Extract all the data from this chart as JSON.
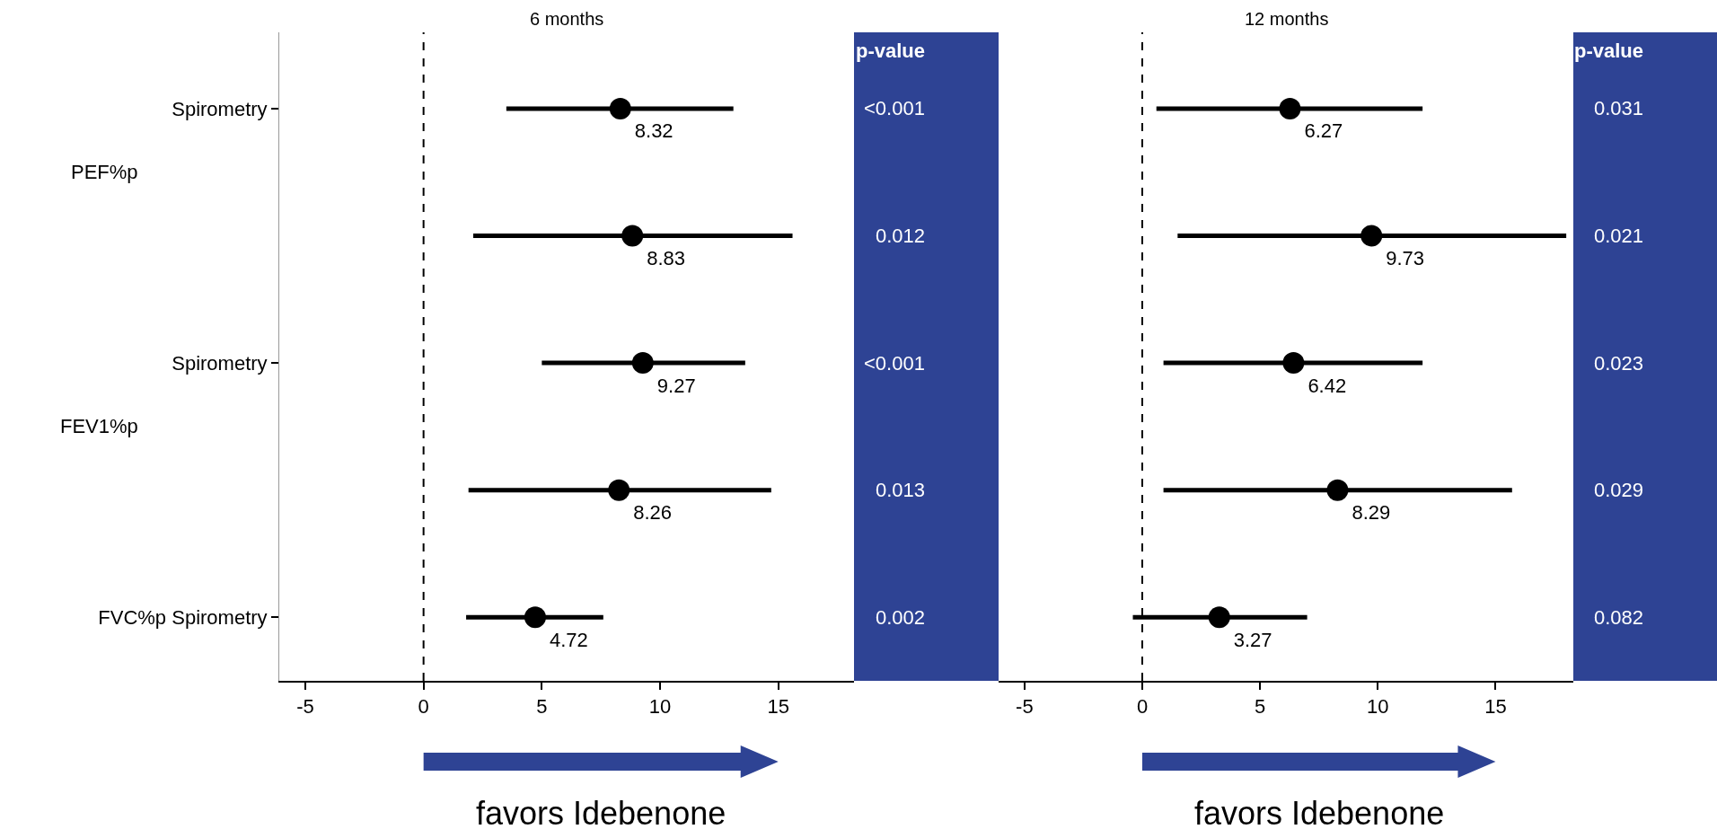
{
  "chart_data": [
    {
      "type": "scatter",
      "orientation": "horizontal",
      "title": "6 months",
      "categories": [
        "Spirometry",
        null,
        "Spirometry",
        null,
        "FVC%p Spirometry"
      ],
      "values": [
        8.32,
        8.83,
        9.27,
        8.26,
        4.72
      ],
      "errors": [
        [
          3.5,
          13.1
        ],
        [
          2.1,
          15.6
        ],
        [
          5.0,
          13.6
        ],
        [
          1.9,
          14.7
        ],
        [
          1.8,
          7.6
        ]
      ],
      "color": "#000000",
      "marker": "circle",
      "data_labels": true,
      "xlim": [
        -6.1,
        18.2
      ],
      "xticks": [
        -5,
        0,
        5,
        10,
        15
      ],
      "grid": false,
      "ref_lines": [
        {
          "axis": "x",
          "value": 0,
          "label": null,
          "line_style": "dashed",
          "color": "#000000"
        }
      ],
      "annotations": [
        "PEF%p",
        "FEV1%p",
        "p-value",
        "<0.001",
        "0.012",
        "<0.001",
        "0.013",
        "0.002",
        "favors Idebenone"
      ]
    },
    {
      "type": "scatter",
      "orientation": "horizontal",
      "title": "12 months",
      "categories": [
        null,
        null,
        null,
        null,
        null
      ],
      "values": [
        6.27,
        9.73,
        6.42,
        8.29,
        3.27
      ],
      "errors": [
        [
          0.6,
          11.9
        ],
        [
          1.5,
          18.0
        ],
        [
          0.9,
          11.9
        ],
        [
          0.9,
          15.7
        ],
        [
          -0.4,
          7.0
        ]
      ],
      "color": "#000000",
      "marker": "circle",
      "data_labels": true,
      "tick_labels": "x",
      "xlim": [
        -6.1,
        18.3
      ],
      "xticks": [
        -5,
        0,
        5,
        10,
        15
      ],
      "grid": false,
      "ref_lines": [
        {
          "axis": "x",
          "value": 0,
          "label": null,
          "line_style": "dashed",
          "color": "#000000"
        }
      ],
      "annotations": [
        "p-value",
        "0.031",
        "0.021",
        "0.023",
        "0.029",
        "0.082",
        "favors Idebenone"
      ]
    }
  ]
}
